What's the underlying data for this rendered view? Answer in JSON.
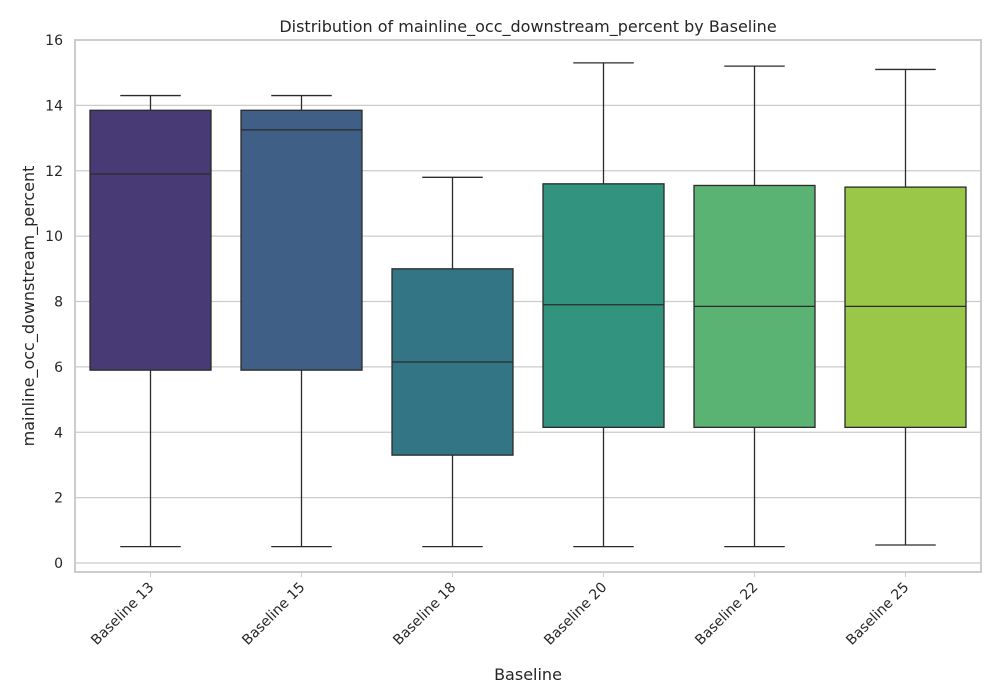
{
  "chart_data": {
    "type": "box",
    "title": "Distribution of mainline_occ_downstream_percent by Baseline",
    "xlabel": "Baseline",
    "ylabel": "mainline_occ_downstream_percent",
    "ylim": [
      -0.3,
      16
    ],
    "yticks": [
      "0",
      "2",
      "4",
      "6",
      "8",
      "10",
      "12",
      "14",
      "16"
    ],
    "grid": true,
    "categories": [
      "Baseline 13",
      "Baseline 15",
      "Baseline 18",
      "Baseline 20",
      "Baseline 22",
      "Baseline 25"
    ],
    "boxes": [
      {
        "min": 0.5,
        "q1": 5.9,
        "median": 11.9,
        "q3": 13.85,
        "max": 14.3,
        "color": "#483a75"
      },
      {
        "min": 0.5,
        "q1": 5.9,
        "median": 13.25,
        "q3": 13.85,
        "max": 14.3,
        "color": "#3f5f87"
      },
      {
        "min": 0.5,
        "q1": 3.3,
        "median": 6.15,
        "q3": 9.0,
        "max": 11.8,
        "color": "#337584"
      },
      {
        "min": 0.5,
        "q1": 4.15,
        "median": 7.9,
        "q3": 11.6,
        "max": 15.3,
        "color": "#32937f"
      },
      {
        "min": 0.5,
        "q1": 4.15,
        "median": 7.85,
        "q3": 11.55,
        "max": 15.2,
        "color": "#5ab373"
      },
      {
        "min": 0.55,
        "q1": 4.15,
        "median": 7.85,
        "q3": 11.5,
        "max": 15.1,
        "color": "#9bc749"
      }
    ]
  }
}
